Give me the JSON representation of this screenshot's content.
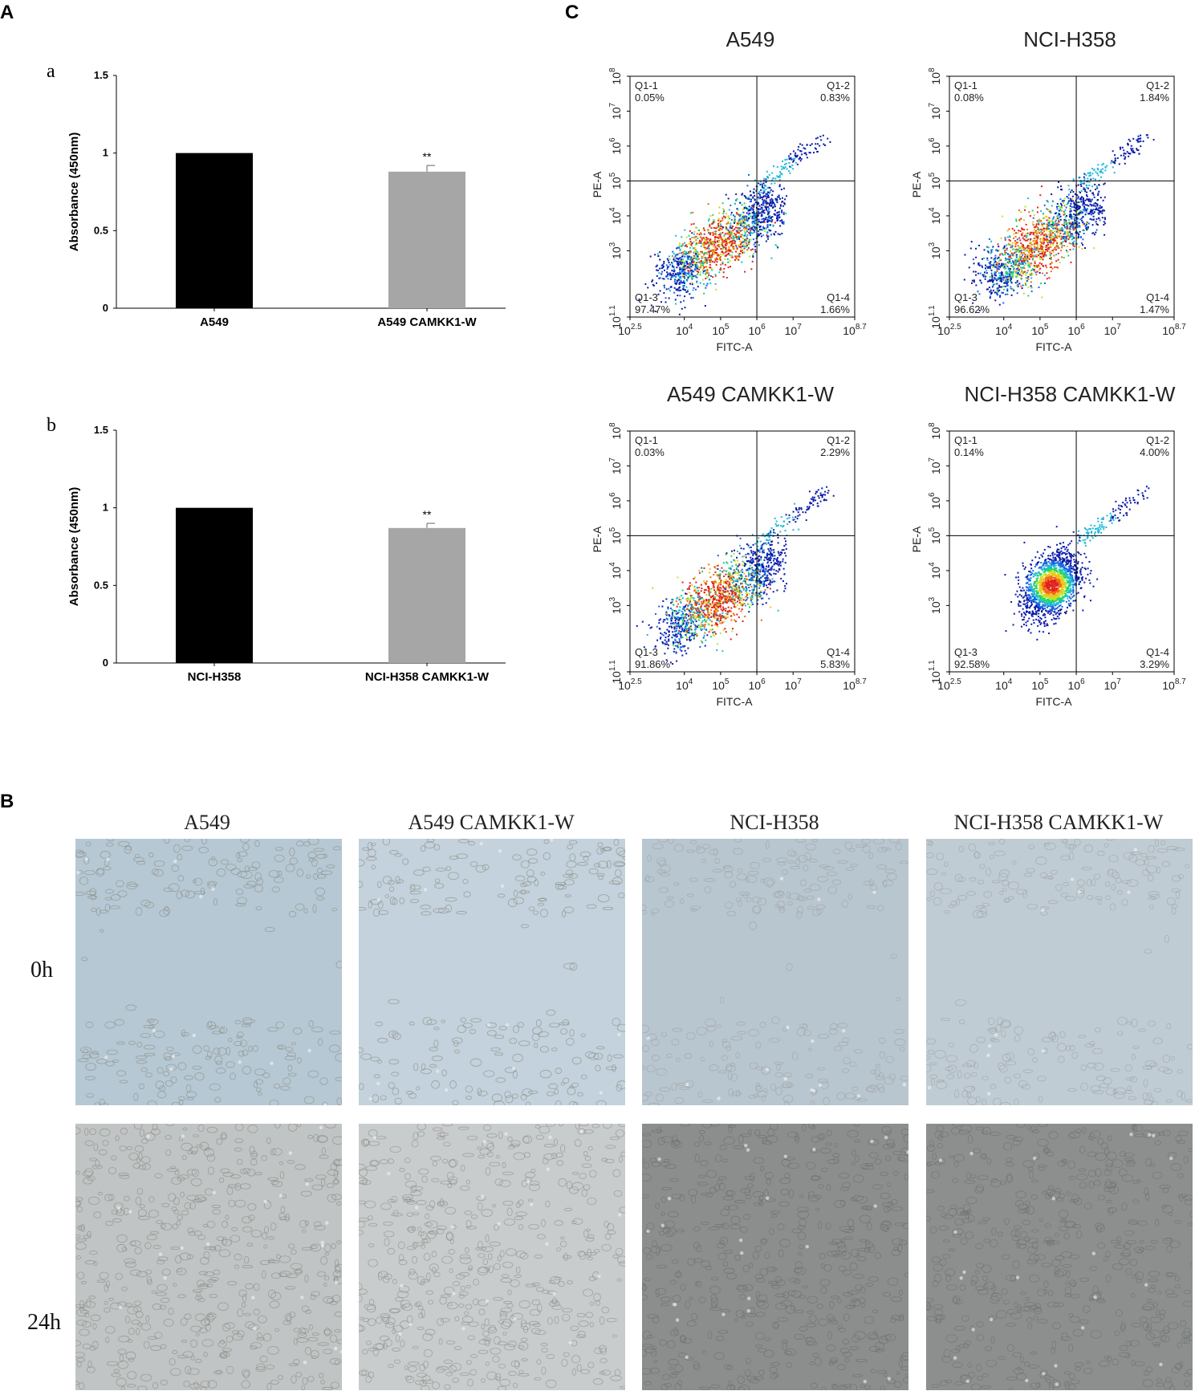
{
  "panels": {
    "A": "A",
    "B": "B",
    "C": "C",
    "a": "a",
    "b": "b"
  },
  "chart_data": [
    {
      "type": "bar",
      "panel": "a",
      "categories": [
        "A549",
        "A549 CAMKK1-W"
      ],
      "values": [
        1.0,
        0.88
      ],
      "errors": [
        0,
        0.04
      ],
      "annotations": [
        "",
        "**"
      ],
      "ylabel": "Absorbance (450nm)",
      "ylim": [
        0,
        1.5
      ],
      "yticks": [
        "0",
        "0.5",
        "1",
        "1.5"
      ],
      "colors": [
        "#000000",
        "#a6a6a6"
      ]
    },
    {
      "type": "bar",
      "panel": "b",
      "categories": [
        "NCI-H358",
        "NCI-H358 CAMKK1-W"
      ],
      "values": [
        1.0,
        0.87
      ],
      "errors": [
        0,
        0.03
      ],
      "annotations": [
        "",
        "**"
      ],
      "ylabel": "Absorbance (450nm)",
      "ylim": [
        0,
        1.5
      ],
      "yticks": [
        "0",
        "0.5",
        "1",
        "1.5"
      ],
      "colors": [
        "#000000",
        "#a6a6a6"
      ]
    },
    {
      "type": "scatter",
      "panel": "C",
      "plots": [
        {
          "title": "A549",
          "q1": "0.05%",
          "q2": "0.83%",
          "q3": "97.47%",
          "q4": "1.66%",
          "centers": [
            [
              4.8,
              3.0
            ],
            [
              5.5,
              3.8
            ]
          ],
          "elongated": true
        },
        {
          "title": "NCI-H358",
          "q1": "0.08%",
          "q2": "1.84%",
          "q3": "96.62%",
          "q4": "1.47%",
          "centers": [
            [
              5.0,
              3.0
            ],
            [
              5.8,
              4.0
            ]
          ],
          "elongated": true
        },
        {
          "title": "A549 CAMKK1-W",
          "q1": "0.03%",
          "q2": "2.29%",
          "q3": "91.86%",
          "q4": "5.83%",
          "centers": [
            [
              4.8,
              3.0
            ],
            [
              5.4,
              3.8
            ]
          ],
          "elongated": true
        },
        {
          "title": "NCI-H358 CAMKK1-W",
          "q1": "0.14%",
          "q2": "4.00%",
          "q3": "92.58%",
          "q4": "3.29%",
          "centers": [
            [
              5.3,
              3.6
            ]
          ],
          "elongated": false
        }
      ],
      "xlabel": "FITC-A",
      "ylabel": "PE-A",
      "xticks": [
        "10^2.5",
        "10^4",
        "10^5",
        "10^6",
        "10^7",
        "10^8.7"
      ],
      "yticks": [
        "10^1.1",
        "10^3",
        "10^4",
        "10^5",
        "10^6",
        "10^7",
        "10^8"
      ],
      "quadrant_labels": [
        "Q1-1",
        "Q1-2",
        "Q1-3",
        "Q1-4"
      ]
    }
  ],
  "wound_healing": {
    "columns": [
      "A549",
      "A549 CAMKK1-W",
      "NCI-H358",
      "NCI-H358 CAMKK1-W"
    ],
    "rows": [
      "0h",
      "24h"
    ]
  }
}
